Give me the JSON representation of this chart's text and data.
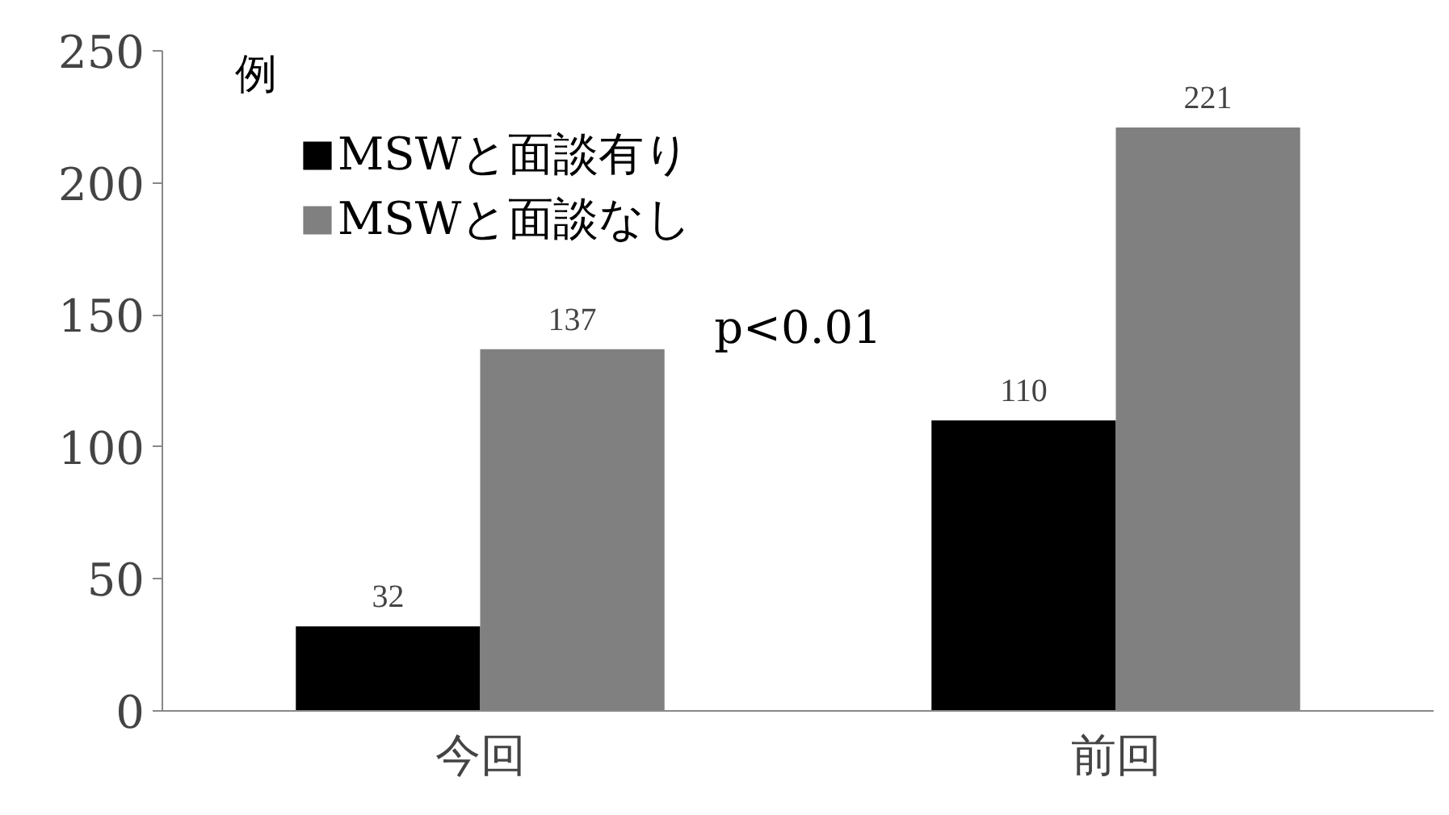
{
  "chart_data": {
    "type": "bar",
    "ylabel": "例",
    "categories": [
      "今回",
      "前回"
    ],
    "series": [
      {
        "name": "MSWと面談有り",
        "color": "#000000",
        "values": [
          32,
          110
        ]
      },
      {
        "name": "MSWと面談なし",
        "color": "#808080",
        "values": [
          137,
          221
        ]
      }
    ],
    "ylim": [
      0,
      250
    ],
    "yticks": [
      0,
      50,
      100,
      150,
      200,
      250
    ],
    "grid": false,
    "legend": "top left",
    "data_labels": true,
    "annotations": [
      "p<0.01"
    ]
  }
}
